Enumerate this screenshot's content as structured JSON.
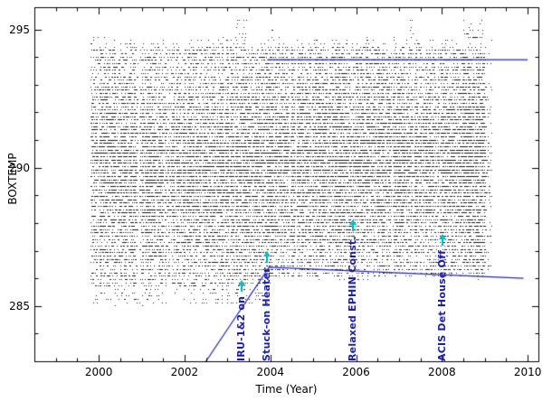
{
  "chart_data": {
    "type": "scatter",
    "title": "",
    "xlabel": "Time (Year)",
    "ylabel": "BOXTEMP",
    "xlim": [
      1998.5,
      2010.25
    ],
    "ylim": [
      283.0,
      295.8
    ],
    "x_ticks": [
      2000,
      2002,
      2004,
      2006,
      2008,
      2010
    ],
    "x_minor_step": 0.5,
    "y_ticks": [
      285,
      290,
      295
    ],
    "y_minor_step": 1,
    "grid": false,
    "legend": "none",
    "point_color": "#161616",
    "line_color": "#2424c4",
    "annotation_color": "#1c1cb4",
    "arrow_color": "#00c6c6",
    "frame_color": "#000000",
    "scatter": {
      "seed": 7,
      "x_start": 1999.8,
      "x_end": 2009.18,
      "columns": 520,
      "min_pts": 20,
      "max_pts": 80,
      "gap_probability": 0.05,
      "limit_change_year": 2004,
      "core_high": 294.25,
      "core_low_before": 285.75,
      "core_low_after": 286.3,
      "fringe_high": 295.35,
      "fringe_low_before": 285.05,
      "fringe_low_after": 286.0,
      "fringe_fraction": 0.07,
      "y_quantum": 0.12,
      "spike_regions": [
        [
          2003.2,
          2003.45
        ],
        [
          2004.0,
          2004.12
        ],
        [
          2007.25,
          2007.42
        ],
        [
          2008.5,
          2008.95
        ]
      ]
    },
    "lines": [
      {
        "name": "upper-limit-line",
        "points": [
          [
            2003.93,
            293.9
          ],
          [
            2010.0,
            293.9
          ]
        ]
      },
      {
        "name": "planning-limit-line",
        "points": [
          [
            2002.5,
            283.0
          ],
          [
            2003.97,
            286.4
          ],
          [
            2009.9,
            286.0
          ]
        ]
      }
    ],
    "annotations": [
      {
        "label": "IRU-1&2 on",
        "x": 2003.33
      },
      {
        "label": "Stuck-on Heater",
        "x": 2003.93
      },
      {
        "label": "Relaxed EPHIN Const.",
        "x": 2005.93
      },
      {
        "label": "ACIS Det House Off",
        "x": 2008.02
      }
    ]
  }
}
